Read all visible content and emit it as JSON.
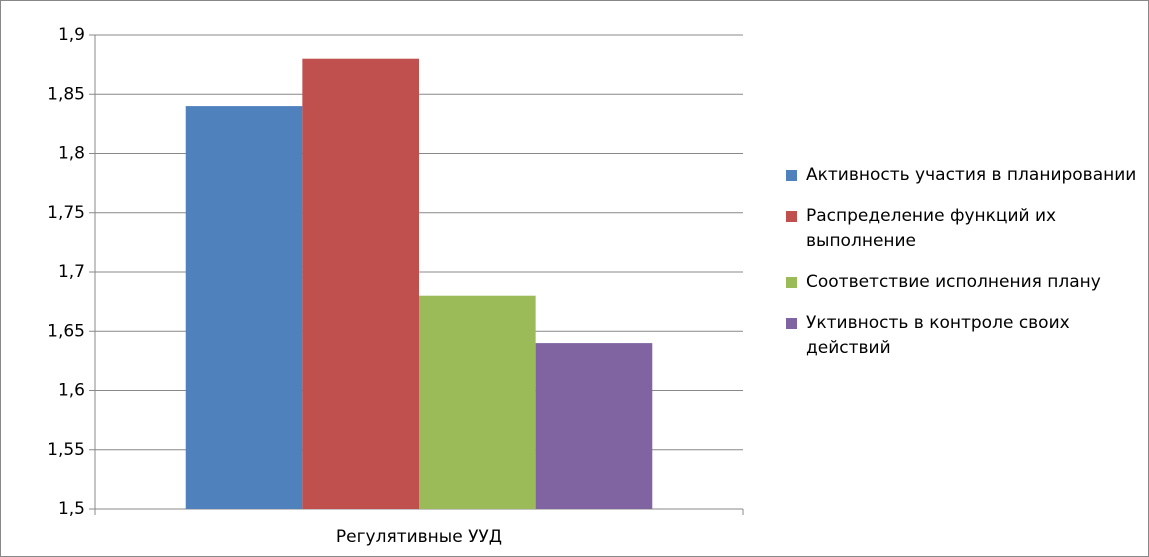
{
  "chart_data": {
    "type": "bar",
    "categories": [
      "Регулятивные УУД"
    ],
    "series": [
      {
        "name": "Активность участия в планировании",
        "color": "#4f81bd",
        "values": [
          1.84
        ]
      },
      {
        "name": "Распределение функций их выполнение",
        "color": "#c0504d",
        "values": [
          1.88
        ]
      },
      {
        "name": "Соответствие исполнения плану",
        "color": "#9bbb59",
        "values": [
          1.68
        ]
      },
      {
        "name": "Уктивность в контроле своих действий",
        "color": "#8064a2",
        "values": [
          1.64
        ]
      }
    ],
    "ylim": [
      1.5,
      1.9
    ],
    "yticks": [
      {
        "value": 1.5,
        "label": "1,5"
      },
      {
        "value": 1.55,
        "label": "1,55"
      },
      {
        "value": 1.6,
        "label": "1,6"
      },
      {
        "value": 1.65,
        "label": "1,65"
      },
      {
        "value": 1.7,
        "label": "1,7"
      },
      {
        "value": 1.75,
        "label": "1,75"
      },
      {
        "value": 1.8,
        "label": "1,8"
      },
      {
        "value": 1.85,
        "label": "1,85"
      },
      {
        "value": 1.9,
        "label": "1,9"
      }
    ],
    "grid": true,
    "legend": "right"
  }
}
